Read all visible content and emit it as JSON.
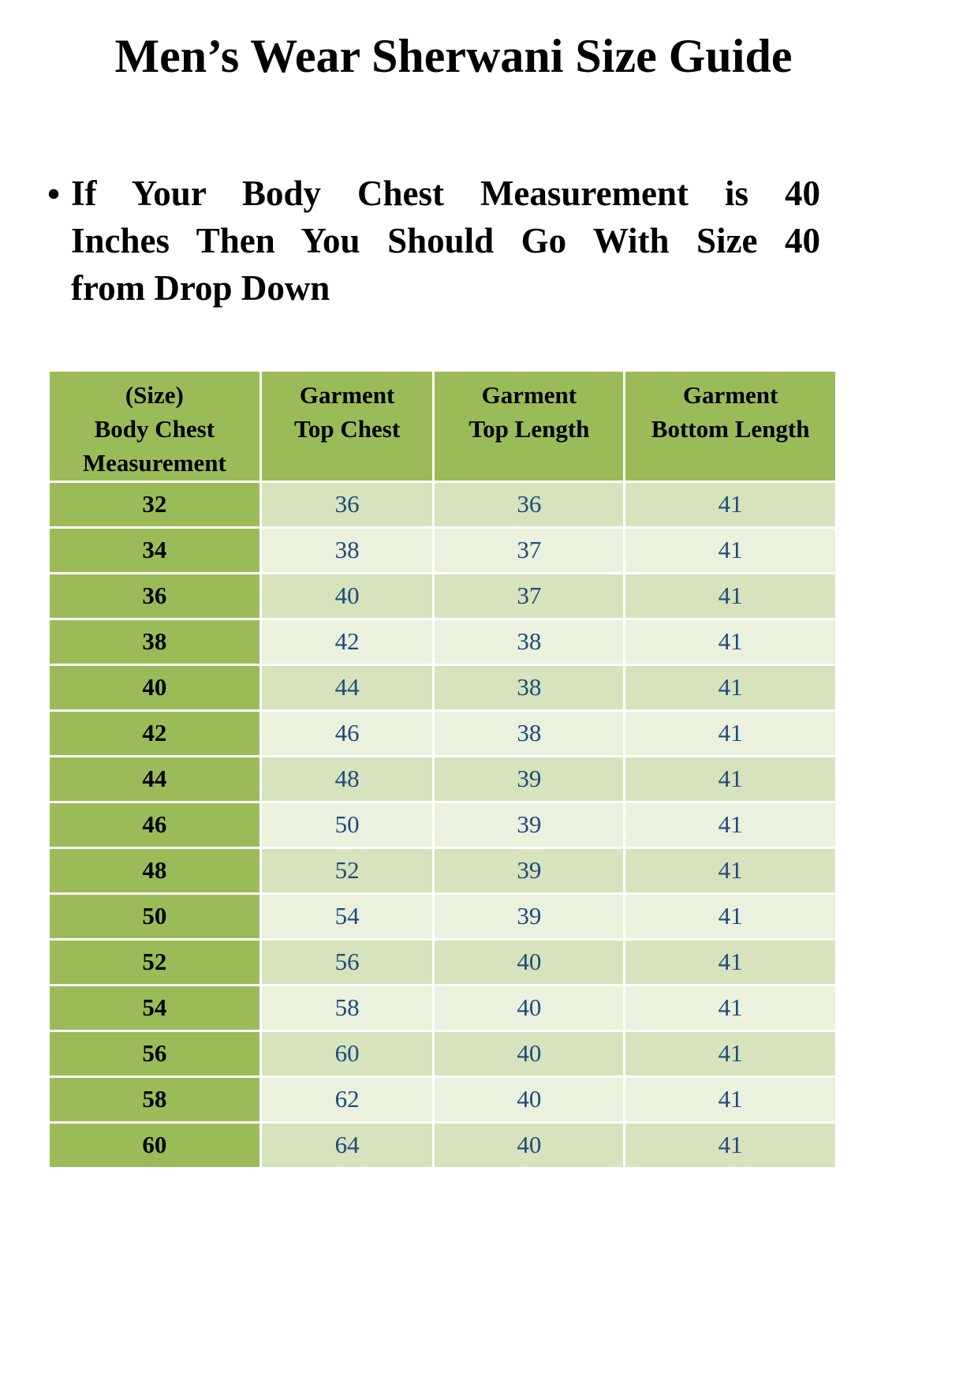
{
  "page": {
    "title": "Men’s Wear Sherwani Size Guide"
  },
  "note": {
    "bullet": "•",
    "full_text": "If Your Body Chest Measurement is 40 Inches Then You Should Go With Size 40 from Drop Down",
    "lines": [
      "If Your Body Chest Measurement is 40",
      "Inches Then You Should Go With Size 40",
      "from Drop Down"
    ]
  },
  "table": {
    "headers": [
      "(Size)\nBody Chest\nMeasurement",
      "Garment\nTop Chest",
      "Garment\nTop Length",
      "Garment\nBottom Length"
    ],
    "rows": [
      [
        "32",
        "36",
        "36",
        "41"
      ],
      [
        "34",
        "38",
        "37",
        "41"
      ],
      [
        "36",
        "40",
        "37",
        "41"
      ],
      [
        "38",
        "42",
        "38",
        "41"
      ],
      [
        "40",
        "44",
        "38",
        "41"
      ],
      [
        "42",
        "46",
        "38",
        "41"
      ],
      [
        "44",
        "48",
        "39",
        "41"
      ],
      [
        "46",
        "50",
        "39",
        "41"
      ],
      [
        "48",
        "52",
        "39",
        "41"
      ],
      [
        "50",
        "54",
        "39",
        "41"
      ],
      [
        "52",
        "56",
        "40",
        "41"
      ],
      [
        "54",
        "58",
        "40",
        "41"
      ],
      [
        "56",
        "60",
        "40",
        "41"
      ],
      [
        "58",
        "62",
        "40",
        "41"
      ],
      [
        "60",
        "64",
        "40",
        "41"
      ]
    ]
  },
  "colors": {
    "header_green": "#9BBB59",
    "row_light": "#D6E3BC",
    "row_lighter": "#EAF1DD",
    "data_text": "#1F497D"
  }
}
